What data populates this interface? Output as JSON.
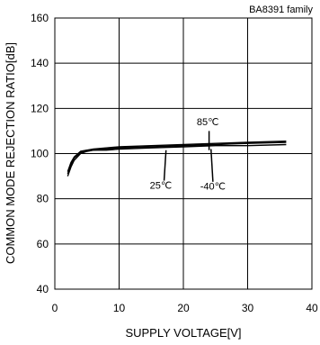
{
  "chart_data": {
    "type": "line",
    "note": "BA8391 family",
    "xlabel": "SUPPLY VOLTAGE[V]",
    "ylabel": "COMMON MODE REJECTION RATIO[dB]",
    "xlim": [
      0,
      40
    ],
    "ylim": [
      40,
      160
    ],
    "xticks": [
      0,
      10,
      20,
      30,
      40
    ],
    "yticks": [
      40,
      60,
      80,
      100,
      120,
      140,
      160
    ],
    "grid": true,
    "series": [
      {
        "name": "85℃",
        "x": [
          2,
          2.5,
          3,
          4,
          5,
          6,
          8,
          10,
          15,
          20,
          25,
          30,
          36
        ],
        "y": [
          90,
          94,
          97,
          100,
          101,
          101.5,
          102,
          102.5,
          103,
          103.5,
          104,
          104.5,
          105
        ]
      },
      {
        "name": "25℃",
        "x": [
          2,
          2.5,
          3,
          4,
          5,
          6,
          8,
          10,
          15,
          20,
          25,
          30,
          36
        ],
        "y": [
          91,
          95,
          98,
          100.5,
          101.5,
          102,
          102.5,
          103,
          103.5,
          104,
          104.5,
          105,
          105.5
        ]
      },
      {
        "name": "-40℃",
        "x": [
          2,
          2.5,
          3,
          4,
          5,
          6,
          8,
          10,
          15,
          20,
          25,
          30,
          36
        ],
        "y": [
          92,
          96,
          98.5,
          101,
          101.5,
          101.5,
          101.5,
          102,
          102.5,
          103,
          103.5,
          103.5,
          104
        ]
      }
    ],
    "annotations": [
      {
        "label": "85℃",
        "text_x": 23.8,
        "text_y": 112.5,
        "line": [
          [
            24,
            110
          ],
          [
            24,
            101.5
          ]
        ]
      },
      {
        "label": "25℃",
        "text_x": 16.5,
        "text_y": 84.5,
        "line": [
          [
            17,
            88
          ],
          [
            17.3,
            101.5
          ]
        ]
      },
      {
        "label": "-40℃",
        "text_x": 24.6,
        "text_y": 84,
        "line": [
          [
            24.6,
            87.5
          ],
          [
            24.3,
            102
          ]
        ]
      }
    ]
  }
}
